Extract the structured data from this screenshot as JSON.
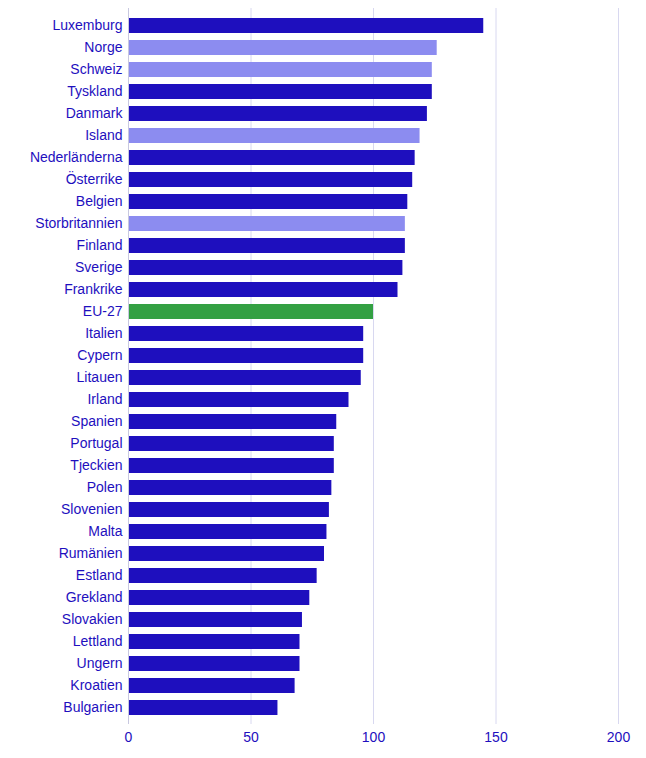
{
  "chart_data": {
    "type": "bar",
    "orientation": "horizontal",
    "categories": [
      "Luxemburg",
      "Norge",
      "Schweiz",
      "Tyskland",
      "Danmark",
      "Island",
      "Nederländerna",
      "Österrike",
      "Belgien",
      "Storbritannien",
      "Finland",
      "Sverige",
      "Frankrike",
      "EU-27",
      "Italien",
      "Cypern",
      "Litauen",
      "Irland",
      "Spanien",
      "Portugal",
      "Tjeckien",
      "Polen",
      "Slovenien",
      "Malta",
      "Rumänien",
      "Estland",
      "Grekland",
      "Slovakien",
      "Lettland",
      "Ungern",
      "Kroatien",
      "Bulgarien"
    ],
    "values": [
      145,
      126,
      124,
      124,
      122,
      119,
      117,
      116,
      114,
      113,
      113,
      112,
      110,
      100,
      96,
      96,
      95,
      90,
      85,
      84,
      84,
      83,
      82,
      81,
      80,
      77,
      74,
      71,
      70,
      70,
      68,
      61
    ],
    "colors": [
      "#1e0fbe",
      "#8c8cf0",
      "#8c8cf0",
      "#1e0fbe",
      "#1e0fbe",
      "#8c8cf0",
      "#1e0fbe",
      "#1e0fbe",
      "#1e0fbe",
      "#8c8cf0",
      "#1e0fbe",
      "#1e0fbe",
      "#1e0fbe",
      "#33a043",
      "#1e0fbe",
      "#1e0fbe",
      "#1e0fbe",
      "#1e0fbe",
      "#1e0fbe",
      "#1e0fbe",
      "#1e0fbe",
      "#1e0fbe",
      "#1e0fbe",
      "#1e0fbe",
      "#1e0fbe",
      "#1e0fbe",
      "#1e0fbe",
      "#1e0fbe",
      "#1e0fbe",
      "#1e0fbe",
      "#1e0fbe",
      "#1e0fbe"
    ],
    "xlim": [
      0,
      200
    ],
    "xticks": [
      0,
      50,
      100,
      150,
      200
    ],
    "grid": true
  }
}
